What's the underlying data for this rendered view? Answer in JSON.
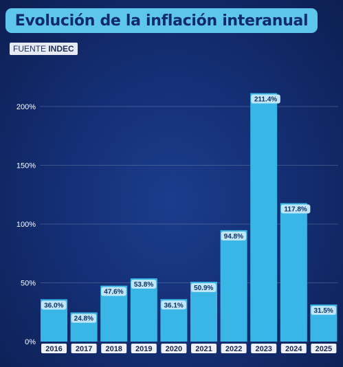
{
  "title": "Evolución de la inflación interanual",
  "source": {
    "prefix": "FUENTE",
    "name": "INDEC"
  },
  "colors": {
    "bar": "#39b6e6",
    "bar_label_bg": "#bfe6f6",
    "bar_label_text": "#123065",
    "axis_text": "#ffffff",
    "title_bg": "#5ec6ea",
    "title_text": "#102a6e"
  },
  "chart_data": {
    "type": "bar",
    "categories": [
      "2016",
      "2017",
      "2018",
      "2019",
      "2020",
      "2021",
      "2022",
      "2023",
      "2024",
      "2025"
    ],
    "values": [
      36.0,
      24.8,
      47.6,
      53.8,
      36.1,
      50.9,
      94.8,
      211.4,
      117.8,
      31.5
    ],
    "value_labels": [
      "36.0%",
      "24.8%",
      "47.6%",
      "53.8%",
      "36.1%",
      "50.9%",
      "94.8%",
      "211.4%",
      "117.8%",
      "31.5%"
    ],
    "y_ticks": [
      0,
      50,
      100,
      150,
      200
    ],
    "y_tick_labels": [
      "0%",
      "50%",
      "100%",
      "150%",
      "200%"
    ],
    "ylim": [
      0,
      211.4
    ],
    "grid": true,
    "title": "Evolución de la inflación interanual",
    "xlabel": "",
    "ylabel": ""
  }
}
